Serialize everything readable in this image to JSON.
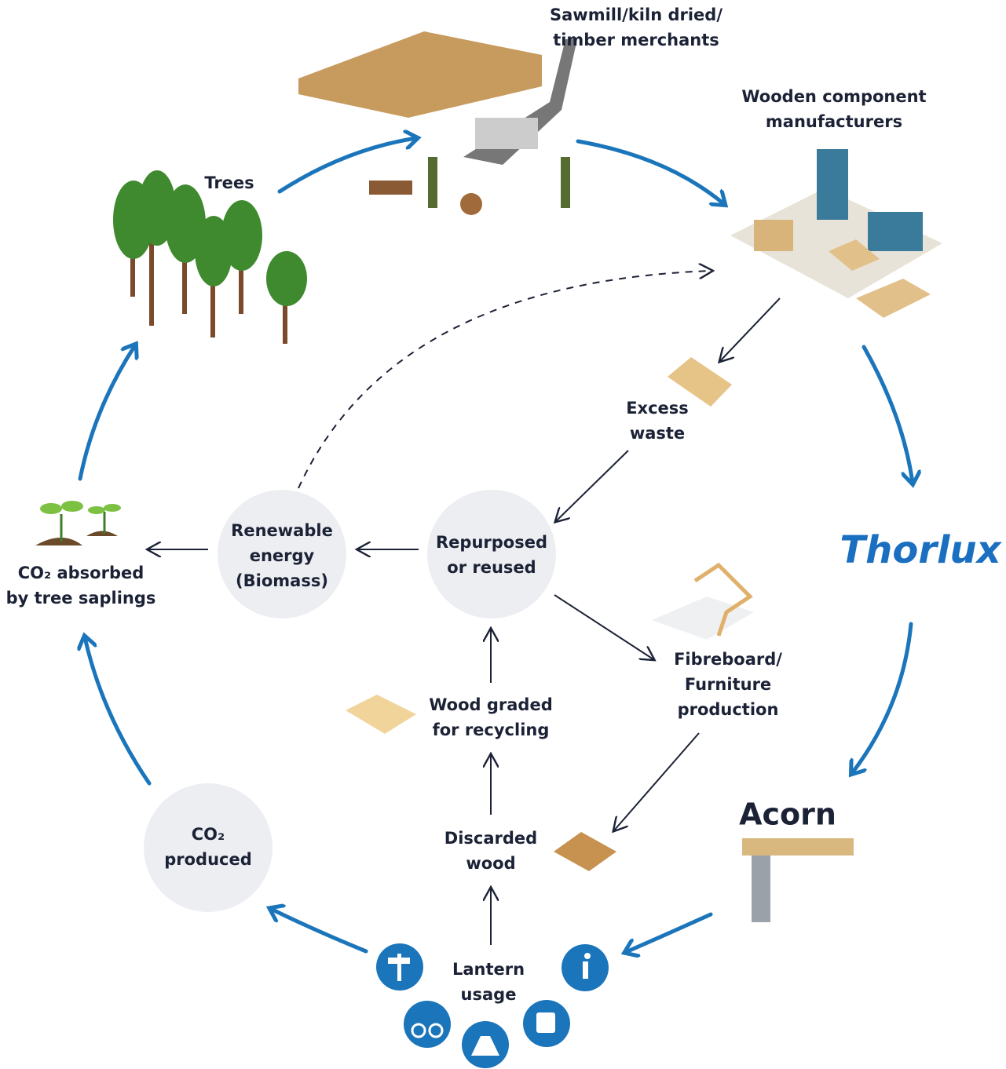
{
  "nodes": [
    {
      "lines": [
        "Sawmill/kiln dried/",
        "timber merchants"
      ]
    },
    {
      "lines": [
        "Trees"
      ]
    },
    {
      "lines": [
        "Wooden component",
        "manufacturers"
      ]
    },
    {
      "lines": [
        "Excess",
        "waste"
      ]
    },
    {
      "lines": [
        "Thorlux"
      ]
    },
    {
      "lines": [
        "Acorn"
      ]
    },
    {
      "lines": [
        "Fibreboard/",
        "Furniture",
        "production"
      ]
    },
    {
      "lines": [
        "Repurposed",
        "or reused"
      ]
    },
    {
      "lines": [
        "Renewable",
        "energy",
        "(Biomass)"
      ]
    },
    {
      "lines": [
        "CO₂ absorbed",
        "by tree saplings"
      ]
    },
    {
      "lines": [
        "Wood graded",
        "for recycling"
      ]
    },
    {
      "lines": [
        "Discarded",
        "wood"
      ]
    },
    {
      "lines": [
        "CO₂",
        "produced"
      ]
    },
    {
      "lines": [
        "Lantern",
        "usage"
      ]
    }
  ]
}
